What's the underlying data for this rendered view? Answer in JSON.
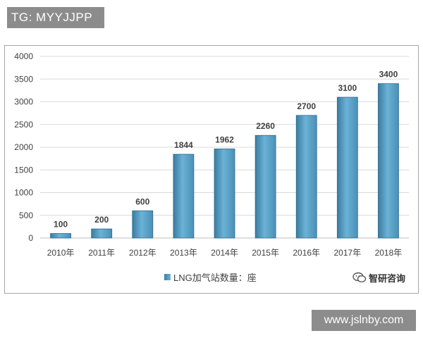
{
  "watermark_top": "TG: MYYJJPP",
  "watermark_bottom": "www.jslnby.com",
  "brand": "智研咨询",
  "chart_data": {
    "type": "bar",
    "categories": [
      "2010年",
      "2011年",
      "2012年",
      "2013年",
      "2014年",
      "2015年",
      "2016年",
      "2017年",
      "2018年"
    ],
    "series": [
      {
        "name": "LNG加气站数量：座",
        "values": [
          100,
          200,
          600,
          1844,
          1962,
          2260,
          2700,
          3100,
          3400
        ]
      }
    ],
    "ylim": [
      0,
      4000
    ],
    "yticks": [
      0,
      500,
      1000,
      1500,
      2000,
      2500,
      3000,
      3500,
      4000
    ],
    "grid": true,
    "legend": "bottom-center",
    "bar_color": "#5aa3c8",
    "title": "",
    "xlabel": "",
    "ylabel": ""
  }
}
